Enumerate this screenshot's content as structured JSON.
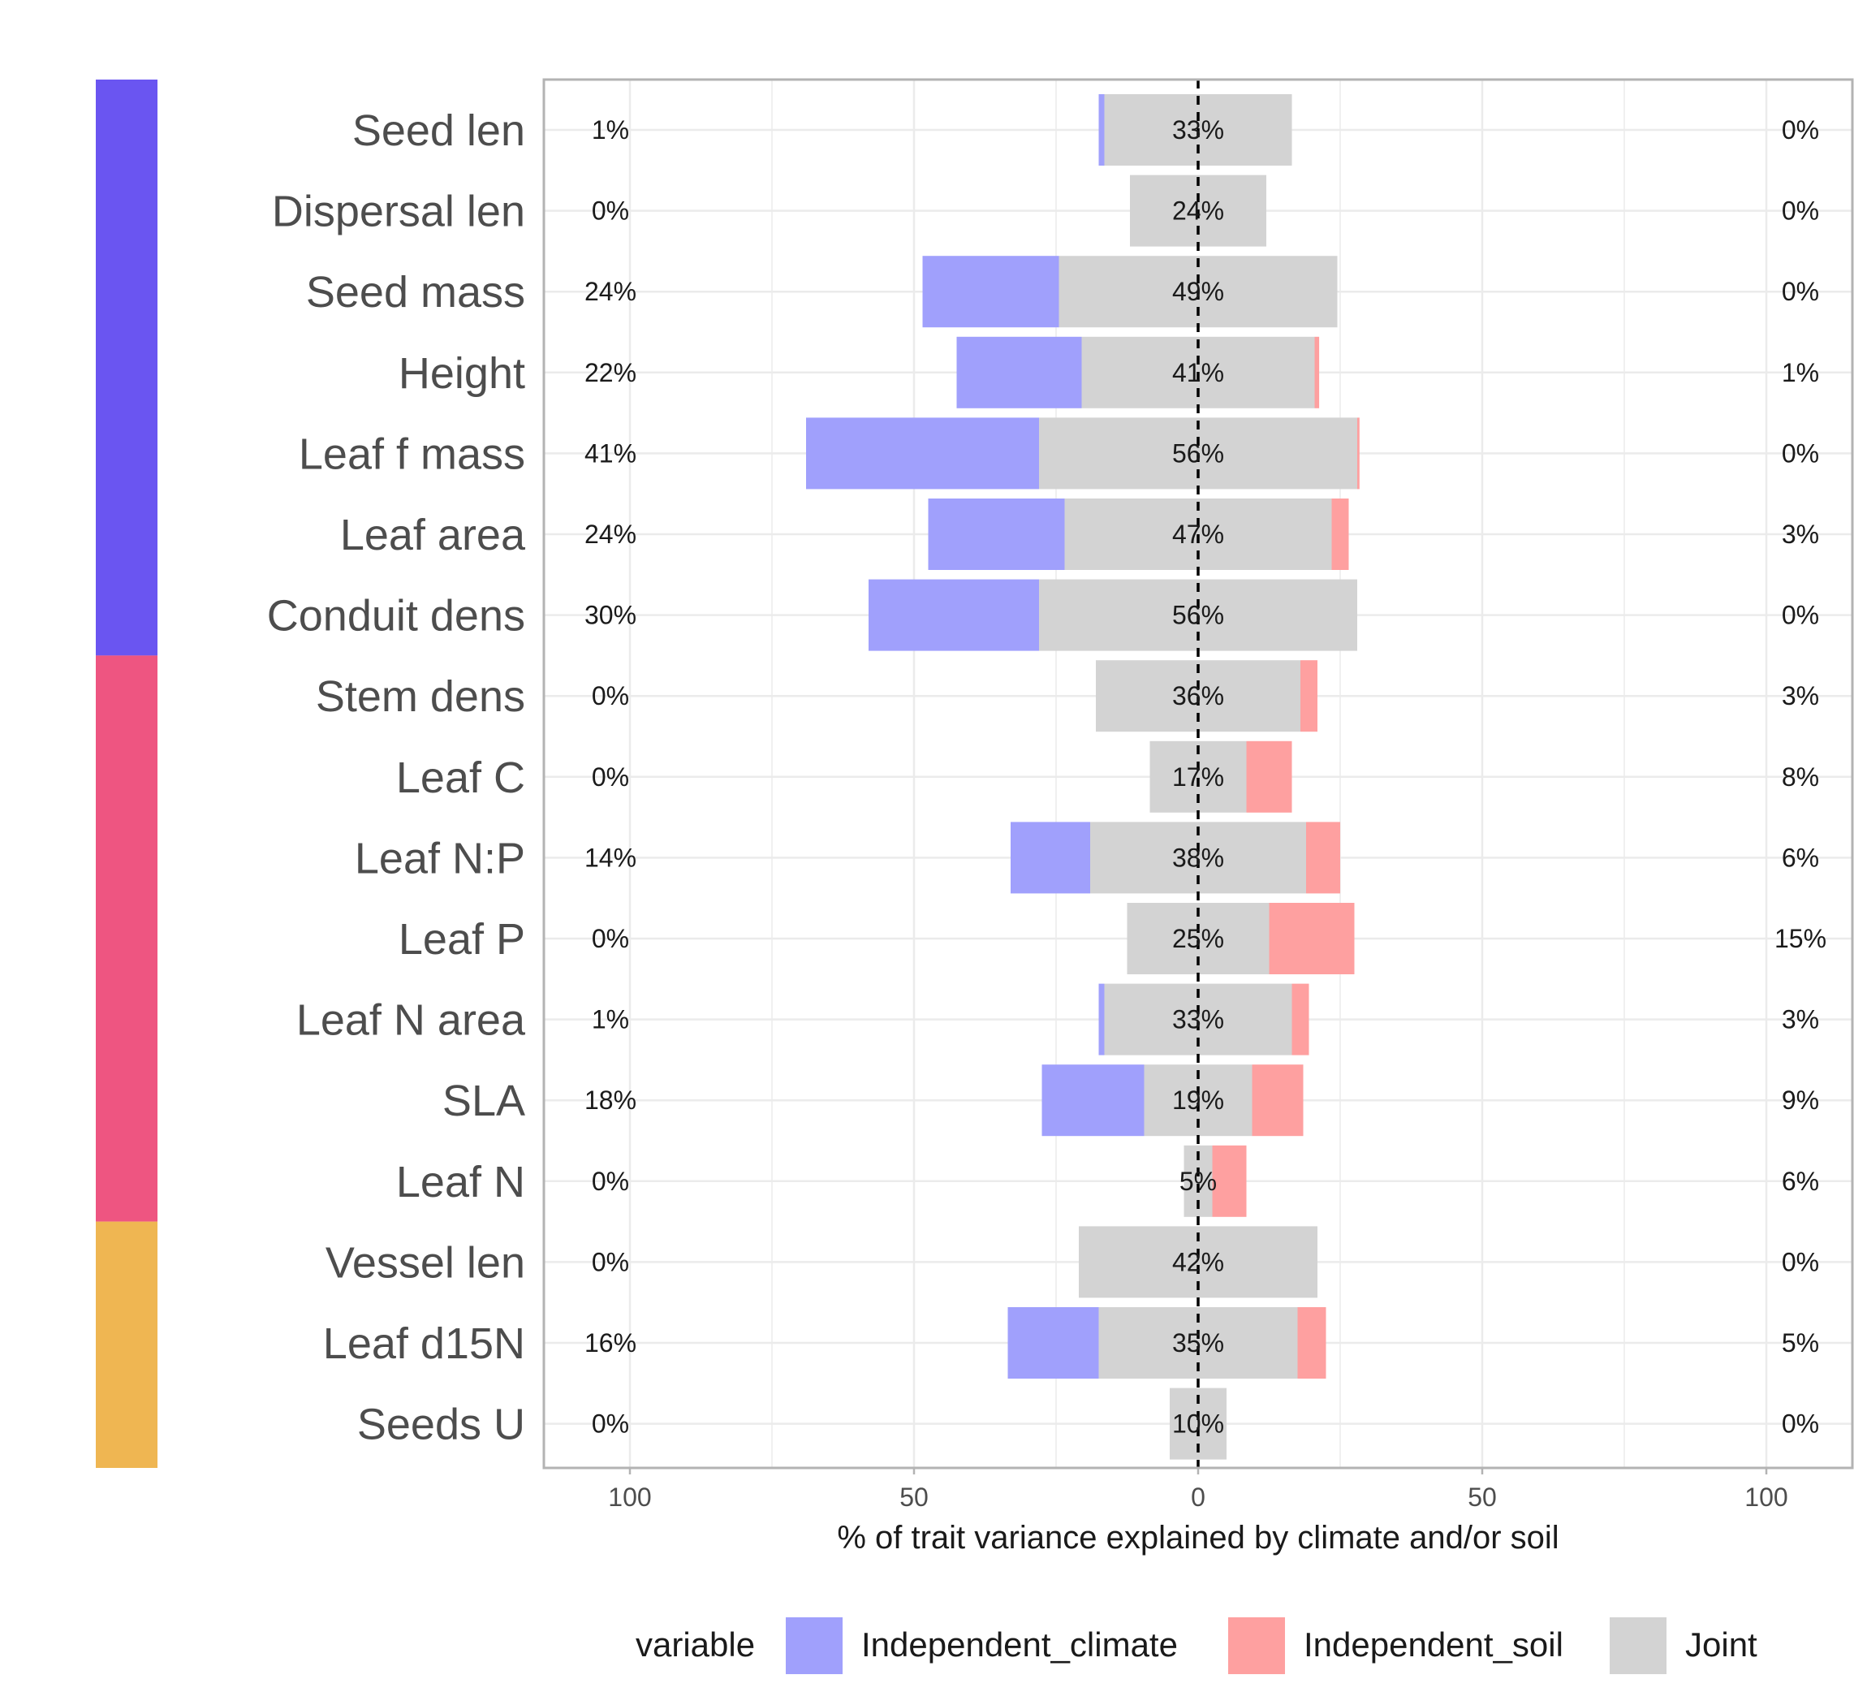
{
  "chart_data": {
    "type": "bar",
    "orientation": "horizontal",
    "stacking": "diverging",
    "xlabel": "% of trait variance explained by climate and/or soil",
    "xlim": [
      -110,
      110
    ],
    "xticks": [
      {
        "value": -100,
        "label": "100"
      },
      {
        "value": -50,
        "label": "50"
      },
      {
        "value": 0,
        "label": "0"
      },
      {
        "value": 50,
        "label": "50"
      },
      {
        "value": 100,
        "label": "100"
      }
    ],
    "grid": true,
    "center_line": "dashed",
    "legend": {
      "position": "bottom",
      "title": "variable",
      "items": [
        {
          "key": "climate",
          "label": "Independent_climate",
          "color": "#a0a0fc"
        },
        {
          "key": "soil",
          "label": "Independent_soil",
          "color": "#fea0a0"
        },
        {
          "key": "joint",
          "label": "Joint",
          "color": "#d3d3d3"
        }
      ]
    },
    "groups": [
      {
        "color": "#6a55f1",
        "count": 7
      },
      {
        "color": "#ee5581",
        "count": 7
      },
      {
        "color": "#efb652",
        "count": 3
      }
    ],
    "traits": [
      {
        "name": "Seed len",
        "climate": 1,
        "joint": 33,
        "soil": 0,
        "climate_label": "1%",
        "joint_label": "33%",
        "soil_label": "0%"
      },
      {
        "name": "Dispersal len",
        "climate": 0,
        "joint": 24,
        "soil": 0,
        "climate_label": "0%",
        "joint_label": "24%",
        "soil_label": "0%"
      },
      {
        "name": "Seed mass",
        "climate": 24,
        "joint": 49,
        "soil": 0,
        "climate_label": "24%",
        "joint_label": "49%",
        "soil_label": "0%"
      },
      {
        "name": "Height",
        "climate": 22,
        "joint": 41,
        "soil": 0.8,
        "climate_label": "22%",
        "joint_label": "41%",
        "soil_label": "1%"
      },
      {
        "name": "Leaf f mass",
        "climate": 41,
        "joint": 56,
        "soil": 0.4,
        "climate_label": "41%",
        "joint_label": "56%",
        "soil_label": "0%"
      },
      {
        "name": "Leaf area",
        "climate": 24,
        "joint": 47,
        "soil": 3,
        "climate_label": "24%",
        "joint_label": "47%",
        "soil_label": "3%"
      },
      {
        "name": "Conduit dens",
        "climate": 30,
        "joint": 56,
        "soil": 0,
        "climate_label": "30%",
        "joint_label": "56%",
        "soil_label": "0%"
      },
      {
        "name": "Stem dens",
        "climate": 0,
        "joint": 36,
        "soil": 3,
        "climate_label": "0%",
        "joint_label": "36%",
        "soil_label": "3%"
      },
      {
        "name": "Leaf C",
        "climate": 0,
        "joint": 17,
        "soil": 8,
        "climate_label": "0%",
        "joint_label": "17%",
        "soil_label": "8%"
      },
      {
        "name": "Leaf N:P",
        "climate": 14,
        "joint": 38,
        "soil": 6,
        "climate_label": "14%",
        "joint_label": "38%",
        "soil_label": "6%"
      },
      {
        "name": "Leaf P",
        "climate": 0,
        "joint": 25,
        "soil": 15,
        "climate_label": "0%",
        "joint_label": "25%",
        "soil_label": "15%"
      },
      {
        "name": "Leaf N area",
        "climate": 1,
        "joint": 33,
        "soil": 3,
        "climate_label": "1%",
        "joint_label": "33%",
        "soil_label": "3%"
      },
      {
        "name": "SLA",
        "climate": 18,
        "joint": 19,
        "soil": 9,
        "climate_label": "18%",
        "joint_label": "19%",
        "soil_label": "9%"
      },
      {
        "name": "Leaf N",
        "climate": 0,
        "joint": 5,
        "soil": 6,
        "climate_label": "0%",
        "joint_label": "5%",
        "soil_label": "6%"
      },
      {
        "name": "Vessel len",
        "climate": 0,
        "joint": 42,
        "soil": 0,
        "climate_label": "0%",
        "joint_label": "42%",
        "soil_label": "0%"
      },
      {
        "name": "Leaf d15N",
        "climate": 16,
        "joint": 35,
        "soil": 5,
        "climate_label": "16%",
        "joint_label": "35%",
        "soil_label": "5%"
      },
      {
        "name": "Seeds U",
        "climate": 0,
        "joint": 10,
        "soil": 0,
        "climate_label": "0%",
        "joint_label": "10%",
        "soil_label": "0%"
      }
    ]
  }
}
